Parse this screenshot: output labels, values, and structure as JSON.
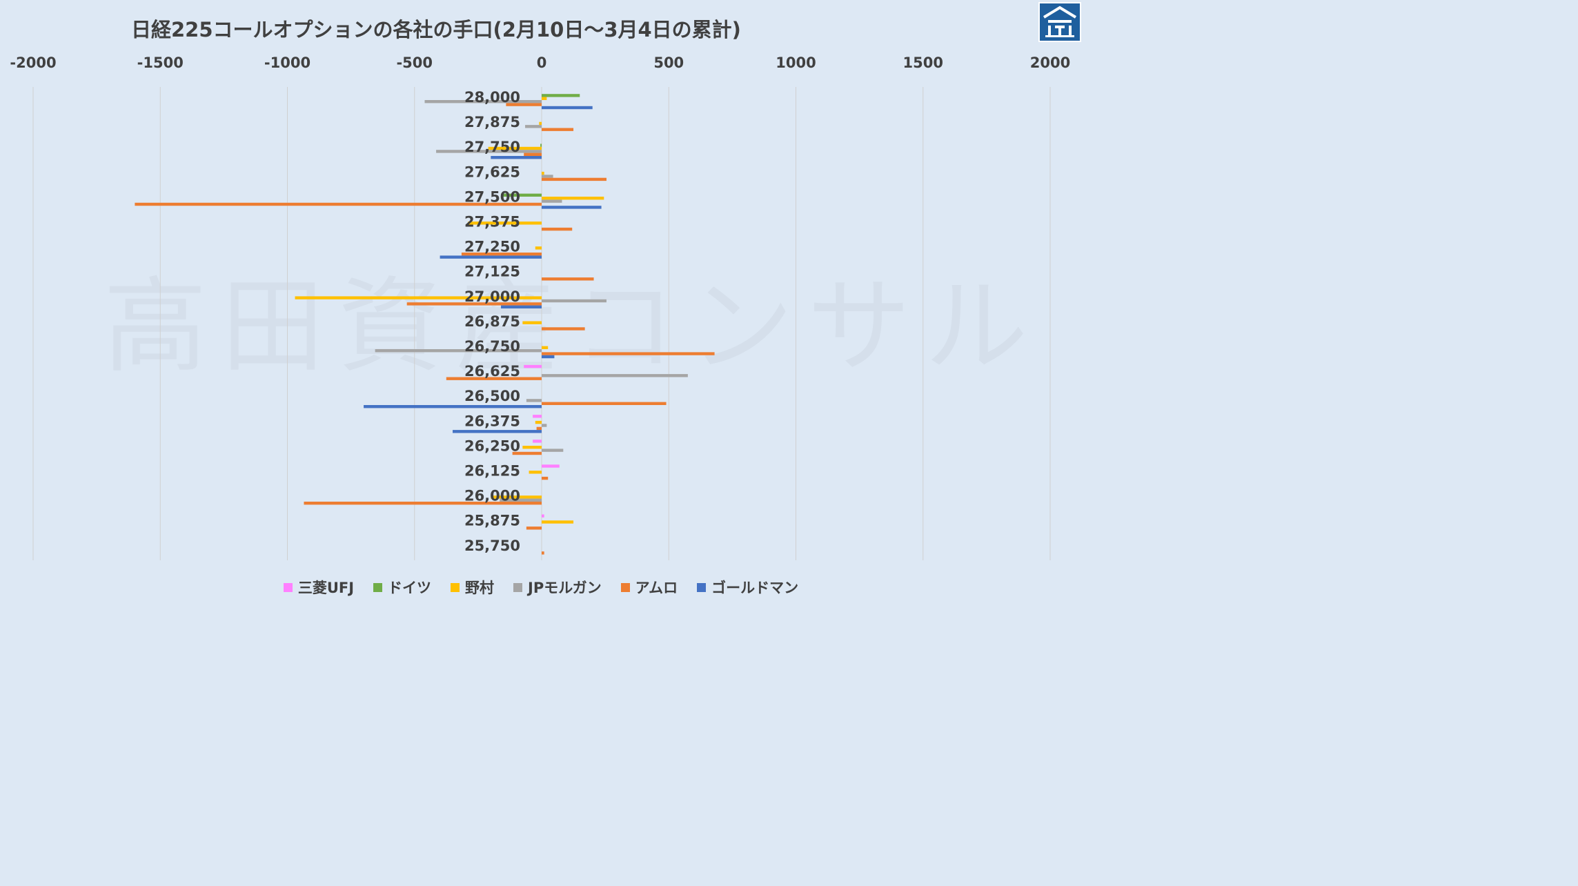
{
  "chart_data": {
    "type": "bar",
    "orientation": "horizontal",
    "title": "日経225コールオプションの各社の手口(2月10日～3月4日の累計)",
    "watermark": "高田資産コンサル",
    "xlim": [
      -2000,
      2000
    ],
    "x_ticks": [
      "-2000",
      "-1500",
      "-1000",
      "-500",
      "0",
      "500",
      "1000",
      "1500",
      "2000"
    ],
    "x_tick_values": [
      -2000,
      -1500,
      -1000,
      -500,
      0,
      500,
      1000,
      1500,
      2000
    ],
    "grid": true,
    "legend_position": "bottom",
    "categories": [
      "28,000",
      "27,875",
      "27,750",
      "27,625",
      "27,500",
      "27,375",
      "27,250",
      "27,125",
      "27,000",
      "26,875",
      "26,750",
      "26,625",
      "26,500",
      "26,375",
      "26,250",
      "26,125",
      "26,000",
      "25,875",
      "25,750"
    ],
    "series": [
      {
        "name": "三菱UFJ",
        "color": "#ff80ff",
        "values": [
          0,
          0,
          0,
          0,
          0,
          0,
          0,
          0,
          0,
          0,
          0,
          -70,
          0,
          -35,
          -35,
          70,
          0,
          10,
          0
        ]
      },
      {
        "name": "ドイツ",
        "color": "#70ad47",
        "values": [
          150,
          0,
          -5,
          0,
          -160,
          0,
          0,
          0,
          0,
          0,
          0,
          0,
          0,
          0,
          0,
          0,
          0,
          0,
          0
        ]
      },
      {
        "name": "野村",
        "color": "#ffc000",
        "values": [
          20,
          -10,
          -210,
          10,
          245,
          -290,
          -25,
          0,
          -970,
          -75,
          25,
          0,
          0,
          -25,
          -75,
          -50,
          -200,
          125,
          0
        ]
      },
      {
        "name": "JPモルガン",
        "color": "#a5a5a5",
        "values": [
          -460,
          -65,
          -415,
          45,
          80,
          0,
          0,
          0,
          255,
          0,
          -655,
          575,
          -60,
          20,
          85,
          0,
          -165,
          0,
          0
        ]
      },
      {
        "name": "アムロ",
        "color": "#ed7d31",
        "values": [
          -140,
          125,
          -70,
          255,
          -1600,
          120,
          -315,
          205,
          -530,
          170,
          680,
          -375,
          490,
          -20,
          -115,
          25,
          -935,
          -60,
          10
        ]
      },
      {
        "name": "ゴールドマン",
        "color": "#4472c4",
        "values": [
          200,
          0,
          -200,
          0,
          235,
          0,
          -400,
          0,
          -160,
          0,
          50,
          0,
          -700,
          -350,
          0,
          0,
          0,
          0,
          0
        ]
      }
    ]
  },
  "colors": {
    "background": "#dde8f4",
    "text": "#404040",
    "grid": "#d0d0d0",
    "logo": "#1f5f9e"
  }
}
